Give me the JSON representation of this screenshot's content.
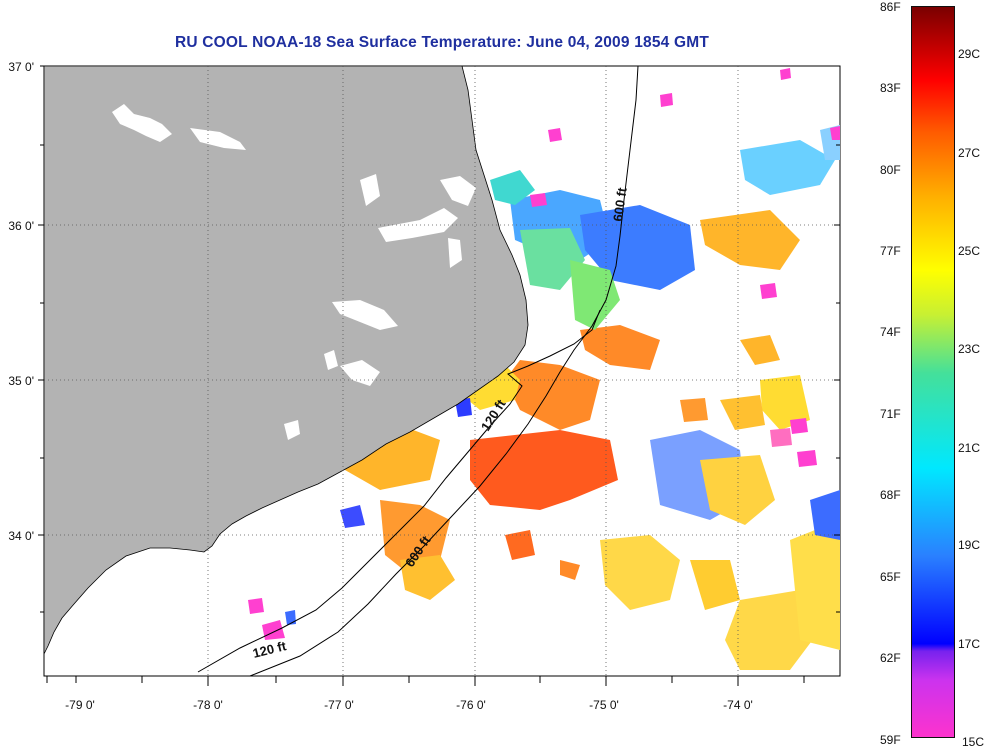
{
  "title": "RU COOL  NOAA-18  Sea Surface Temperature:  June 04, 2009 1854 GMT",
  "lat_labels": [
    "37 0'",
    "36 0'",
    "35 0'",
    "34 0'"
  ],
  "lon_labels": [
    "-79 0'",
    "-78 0'",
    "-77 0'",
    "-76 0'",
    "-75 0'",
    "-74 0'"
  ],
  "depth_contours": [
    {
      "name": "120-ft",
      "label": "120 ft"
    },
    {
      "name": "600-ft",
      "label": "600 ft"
    }
  ],
  "colorbar": {
    "fahrenheit_labels": [
      "86F",
      "83F",
      "80F",
      "77F",
      "74F",
      "71F",
      "68F",
      "65F",
      "62F",
      "59F"
    ],
    "celsius_labels": [
      "29C",
      "27C",
      "25C",
      "23C",
      "21C",
      "19C",
      "17C",
      "15C"
    ]
  },
  "colors": {
    "land": "#b3b3b3",
    "title": "#1f2f9f"
  }
}
